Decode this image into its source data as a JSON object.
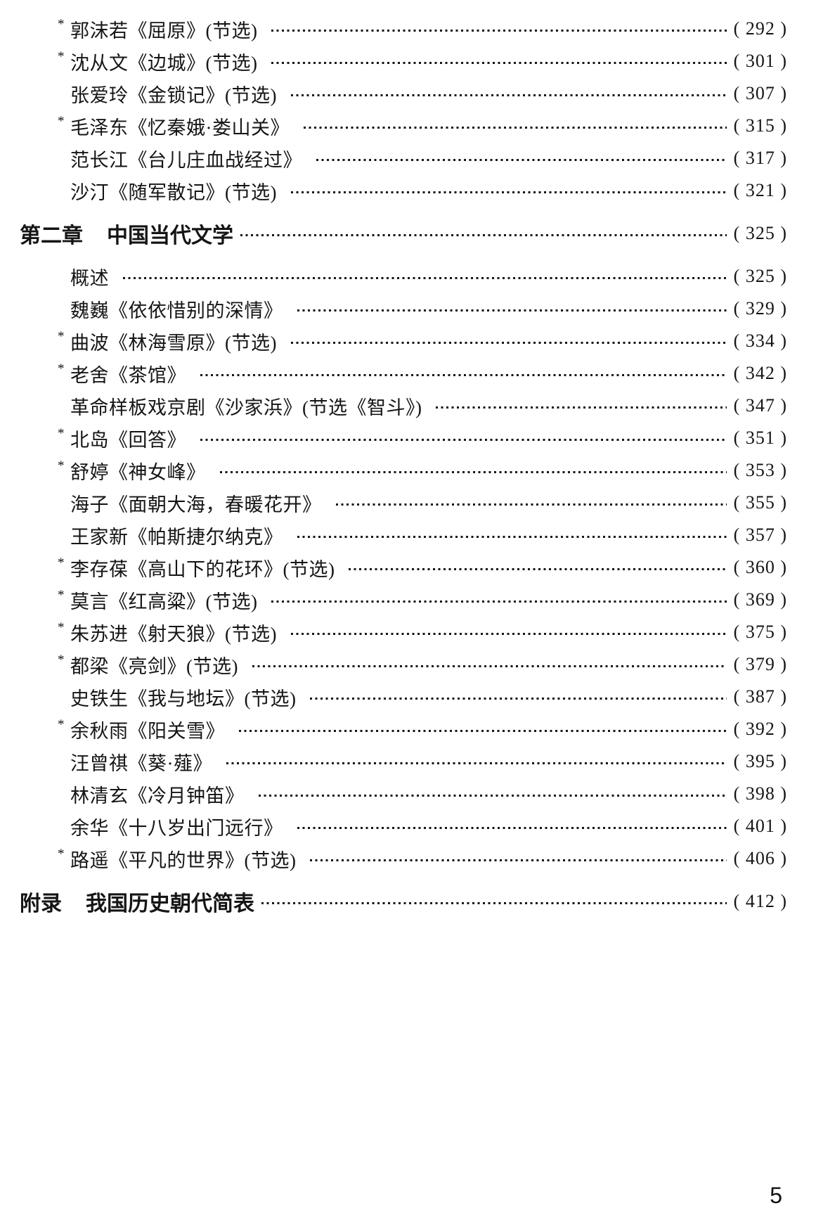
{
  "page": {
    "footer_page_number": "5"
  },
  "toc": {
    "rows": [
      {
        "type": "entry",
        "star": "*",
        "title": "郭沫若《屈原》(节选)",
        "page": "( 292 )"
      },
      {
        "type": "entry",
        "star": "*",
        "title": "沈从文《边城》(节选)",
        "page": "( 301 )"
      },
      {
        "type": "entry",
        "star": "",
        "title": "张爱玲《金锁记》(节选)",
        "page": "( 307 )"
      },
      {
        "type": "entry",
        "star": "*",
        "title": "毛泽东《忆秦娥·娄山关》",
        "page": "( 315 )"
      },
      {
        "type": "entry",
        "star": "",
        "title": "范长江《台儿庄血战经过》",
        "page": "( 317 )"
      },
      {
        "type": "entry",
        "star": "",
        "title": "沙汀《随军散记》(节选)",
        "page": "( 321 )"
      },
      {
        "type": "chapter",
        "label": "第二章",
        "title": "中国当代文学",
        "page": "( 325 )"
      },
      {
        "type": "entry",
        "star": "",
        "title": "概述",
        "page": "( 325 )"
      },
      {
        "type": "entry",
        "star": "",
        "title": "魏巍《依依惜别的深情》",
        "page": "( 329 )"
      },
      {
        "type": "entry",
        "star": "*",
        "title": "曲波《林海雪原》(节选)",
        "page": "( 334 )"
      },
      {
        "type": "entry",
        "star": "*",
        "title": "老舍《茶馆》",
        "page": "( 342 )"
      },
      {
        "type": "entry",
        "star": "",
        "title": "革命样板戏京剧《沙家浜》(节选《智斗》)",
        "page": "( 347 )"
      },
      {
        "type": "entry",
        "star": "*",
        "title": "北岛《回答》",
        "page": "( 351 )"
      },
      {
        "type": "entry",
        "star": "*",
        "title": "舒婷《神女峰》",
        "page": "( 353 )"
      },
      {
        "type": "entry",
        "star": "",
        "title": "海子《面朝大海，春暖花开》",
        "page": "( 355 )"
      },
      {
        "type": "entry",
        "star": "",
        "title": "王家新《帕斯捷尔纳克》",
        "page": "( 357 )"
      },
      {
        "type": "entry",
        "star": "*",
        "title": "李存葆《高山下的花环》(节选)",
        "page": "( 360 )"
      },
      {
        "type": "entry",
        "star": "*",
        "title": "莫言《红高粱》(节选)",
        "page": "( 369 )"
      },
      {
        "type": "entry",
        "star": "*",
        "title": "朱苏进《射天狼》(节选)",
        "page": "( 375 )"
      },
      {
        "type": "entry",
        "star": "*",
        "title": "都梁《亮剑》(节选)",
        "page": "( 379 )"
      },
      {
        "type": "entry",
        "star": "",
        "title": "史铁生《我与地坛》(节选)",
        "page": "( 387 )"
      },
      {
        "type": "entry",
        "star": "*",
        "title": "余秋雨《阳关雪》",
        "page": "( 392 )"
      },
      {
        "type": "entry",
        "star": "",
        "title": "汪曾祺《葵·薤》",
        "page": "( 395 )"
      },
      {
        "type": "entry",
        "star": "",
        "title": "林清玄《冷月钟笛》",
        "page": "( 398 )"
      },
      {
        "type": "entry",
        "star": "",
        "title": "余华《十八岁出门远行》",
        "page": "( 401 )"
      },
      {
        "type": "entry",
        "star": "*",
        "title": "路遥《平凡的世界》(节选)",
        "page": "( 406 )"
      },
      {
        "type": "chapter",
        "label": "附录",
        "title": "我国历史朝代简表",
        "page": "( 412 )"
      }
    ]
  }
}
